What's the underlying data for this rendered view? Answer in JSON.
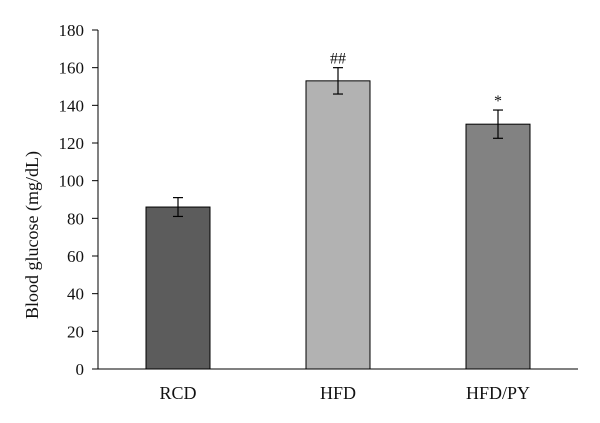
{
  "chart_data": {
    "type": "bar",
    "categories": [
      "RCD",
      "HFD",
      "HFD/PY"
    ],
    "values": [
      86,
      153,
      130
    ],
    "errors": [
      5,
      7,
      7.5
    ],
    "annotations": [
      "",
      "##",
      "*"
    ],
    "bar_colors": [
      "#5c5c5c",
      "#b2b2b2",
      "#828282"
    ],
    "ylabel": "Blood glucose (mg/dL)",
    "ylim": [
      0,
      180
    ],
    "yticks": [
      0,
      20,
      40,
      60,
      80,
      100,
      120,
      140,
      160,
      180
    ],
    "grid": false,
    "legend": "none"
  }
}
